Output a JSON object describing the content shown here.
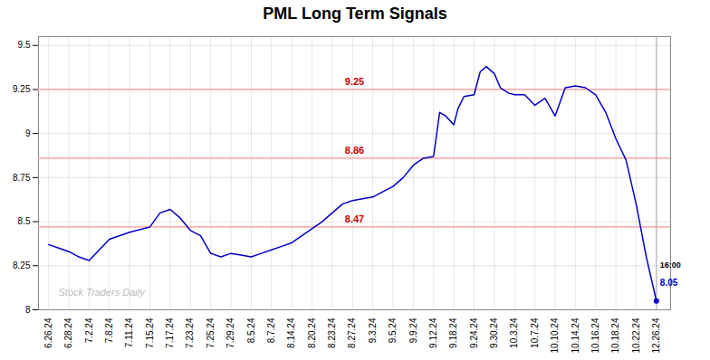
{
  "chart_data": {
    "type": "line",
    "title": "PML Long Term Signals",
    "x": [
      0,
      0.5,
      1,
      1.5,
      2,
      3,
      4,
      5,
      5.5,
      6,
      6.5,
      7,
      7.5,
      8,
      8.5,
      9,
      9.5,
      10,
      10.5,
      11,
      11.5,
      12,
      12.5,
      13,
      13.5,
      14,
      14.5,
      15,
      15.5,
      16,
      16.5,
      17,
      17.5,
      18,
      18.5,
      19,
      19.3,
      19.6,
      20,
      20.2,
      20.5,
      21,
      21.3,
      21.6,
      22,
      22.3,
      22.7,
      23,
      23.5,
      24,
      24.5,
      25,
      25.5,
      26,
      26.5,
      27,
      27.5,
      28,
      28.5,
      29,
      29.5,
      30
    ],
    "values": [
      8.37,
      8.35,
      8.33,
      8.3,
      8.28,
      8.4,
      8.44,
      8.47,
      8.55,
      8.57,
      8.52,
      8.45,
      8.42,
      8.32,
      8.3,
      8.32,
      8.31,
      8.3,
      8.32,
      8.34,
      8.36,
      8.38,
      8.42,
      8.46,
      8.5,
      8.55,
      8.6,
      8.62,
      8.63,
      8.64,
      8.67,
      8.7,
      8.75,
      8.82,
      8.86,
      8.87,
      9.12,
      9.1,
      9.05,
      9.14,
      9.21,
      9.22,
      9.35,
      9.38,
      9.34,
      9.26,
      9.23,
      9.22,
      9.22,
      9.16,
      9.2,
      9.1,
      9.26,
      9.27,
      9.26,
      9.22,
      9.12,
      8.97,
      8.85,
      8.6,
      8.3,
      8.05
    ],
    "color": "#0000CC",
    "xlim": [
      -0.5,
      30.7
    ],
    "xticks": [
      {
        "value": 0,
        "label": "6.26.24"
      },
      {
        "value": 1,
        "label": "6.28.24"
      },
      {
        "value": 2,
        "label": "7.2.24"
      },
      {
        "value": 3,
        "label": "7.8.24"
      },
      {
        "value": 4,
        "label": "7.11.24"
      },
      {
        "value": 5,
        "label": "7.15.24"
      },
      {
        "value": 6,
        "label": "7.17.24"
      },
      {
        "value": 7,
        "label": "7.23.24"
      },
      {
        "value": 8,
        "label": "7.25.24"
      },
      {
        "value": 9,
        "label": "7.29.24"
      },
      {
        "value": 10,
        "label": "8.5.24"
      },
      {
        "value": 11,
        "label": "8.7.24"
      },
      {
        "value": 12,
        "label": "8.14.24"
      },
      {
        "value": 13,
        "label": "8.20.24"
      },
      {
        "value": 14,
        "label": "8.23.24"
      },
      {
        "value": 15,
        "label": "8.27.24"
      },
      {
        "value": 16,
        "label": "9.3.24"
      },
      {
        "value": 17,
        "label": "9.5.24"
      },
      {
        "value": 18,
        "label": "9.9.24"
      },
      {
        "value": 19,
        "label": "9.12.24"
      },
      {
        "value": 20,
        "label": "9.18.24"
      },
      {
        "value": 21,
        "label": "9.24.24"
      },
      {
        "value": 22,
        "label": "9.30.24"
      },
      {
        "value": 23,
        "label": "10.3.24"
      },
      {
        "value": 24,
        "label": "10.7.24"
      },
      {
        "value": 25,
        "label": "10.10.24"
      },
      {
        "value": 26,
        "label": "10.14.24"
      },
      {
        "value": 27,
        "label": "10.16.24"
      },
      {
        "value": 28,
        "label": "10.18.24"
      },
      {
        "value": 29,
        "label": "10.22.24"
      },
      {
        "value": 30,
        "label": "12.26.24"
      }
    ],
    "ylim": [
      8.0,
      9.55
    ],
    "yticks": [
      8,
      8.25,
      8.5,
      8.75,
      9,
      9.25,
      9.5
    ],
    "grid": true,
    "hlines": [
      {
        "value": 9.25,
        "label": "9.25",
        "color": "#FFB0B0",
        "label_color": "#CC0000"
      },
      {
        "value": 8.86,
        "label": "8.86",
        "color": "#FFB0B0",
        "label_color": "#CC0000"
      },
      {
        "value": 8.47,
        "label": "8.47",
        "color": "#FFB0B0",
        "label_color": "#CC0000"
      }
    ],
    "vlines": [
      {
        "value": 30,
        "color": "#AAAAAA"
      }
    ],
    "annotations": [
      {
        "text": "16:00",
        "color": "#000000"
      },
      {
        "text": "8.05",
        "color": "#0000CC"
      }
    ],
    "watermark": "Stock Traders Daily"
  }
}
